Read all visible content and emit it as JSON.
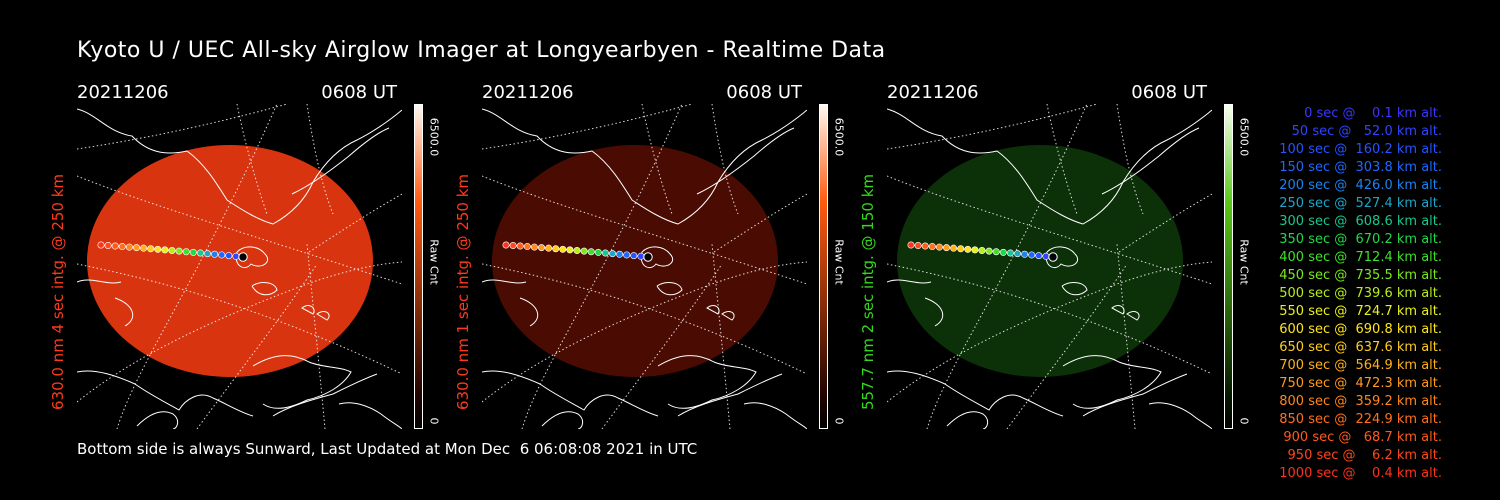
{
  "title": "Kyoto U / UEC All-sky Airglow Imager at Longyearbyen - Realtime Data",
  "footer": "Bottom side is always Sunward, Last Updated at Mon Dec  6 06:08:08 2021 in UTC",
  "panels": [
    {
      "date": "20211206",
      "time": "0608 UT",
      "side_label": "630.0 nm 4 sec intg. @ 250 km",
      "label_color": "#ff3a1c",
      "cbar_max": "6500.0",
      "cbar_unit": "Raw Cnt",
      "cbar_min": "0",
      "cbar_top_color": "#fff8f0",
      "cbar_mid_color": "#ff5a10",
      "disk_color": "#d83410",
      "disk_opacity": 1.0
    },
    {
      "date": "20211206",
      "time": "0608 UT",
      "side_label": "630.0 nm 1 sec intg. @ 250 km",
      "label_color": "#ff3a1c",
      "cbar_max": "6500.0",
      "cbar_unit": "Raw Cnt",
      "cbar_min": "0",
      "cbar_top_color": "#fff8f0",
      "cbar_mid_color": "#ff5a10",
      "disk_color": "#4a0c02",
      "disk_opacity": 1.0
    },
    {
      "date": "20211206",
      "time": "0608 UT",
      "side_label": "557.7 nm 2 sec intg. @ 150 km",
      "label_color": "#34d81c",
      "cbar_max": "6500.0",
      "cbar_unit": "Raw Cnt",
      "cbar_min": "0",
      "cbar_top_color": "#f8fff0",
      "cbar_mid_color": "#5ac818",
      "disk_color": "#0c3008",
      "disk_opacity": 1.0
    }
  ],
  "legend": [
    {
      "text": "   0 sec @    0.1 km alt.",
      "color": "#3a36ff"
    },
    {
      "text": "  50 sec @   52.0 km alt.",
      "color": "#2f45ff"
    },
    {
      "text": " 100 sec @  160.2 km alt.",
      "color": "#2554ff"
    },
    {
      "text": " 150 sec @  303.8 km alt.",
      "color": "#1f66ff"
    },
    {
      "text": " 200 sec @  426.0 km alt.",
      "color": "#1c82f0"
    },
    {
      "text": " 250 sec @  527.4 km alt.",
      "color": "#1ca6c8"
    },
    {
      "text": " 300 sec @  608.6 km alt.",
      "color": "#18c690"
    },
    {
      "text": " 350 sec @  670.2 km alt.",
      "color": "#20d848"
    },
    {
      "text": " 400 sec @  712.4 km alt.",
      "color": "#3ee02a"
    },
    {
      "text": " 450 sec @  735.5 km alt.",
      "color": "#7ce820"
    },
    {
      "text": " 500 sec @  739.6 km alt.",
      "color": "#b8ee1c"
    },
    {
      "text": " 550 sec @  724.7 km alt.",
      "color": "#e8f01c"
    },
    {
      "text": " 600 sec @  690.8 km alt.",
      "color": "#ffe41c"
    },
    {
      "text": " 650 sec @  637.6 km alt.",
      "color": "#ffcc1c"
    },
    {
      "text": " 700 sec @  564.9 km alt.",
      "color": "#ffb01c"
    },
    {
      "text": " 750 sec @  472.3 km alt.",
      "color": "#ff9a1c"
    },
    {
      "text": " 800 sec @  359.2 km alt.",
      "color": "#ff861c"
    },
    {
      "text": " 850 sec @  224.9 km alt.",
      "color": "#ff701c"
    },
    {
      "text": " 900 sec @   68.7 km alt.",
      "color": "#ff5a1c"
    },
    {
      "text": " 950 sec @    6.2 km alt.",
      "color": "#ff461c"
    },
    {
      "text": "1000 sec @    0.4 km alt.",
      "color": "#ff321c"
    }
  ]
}
